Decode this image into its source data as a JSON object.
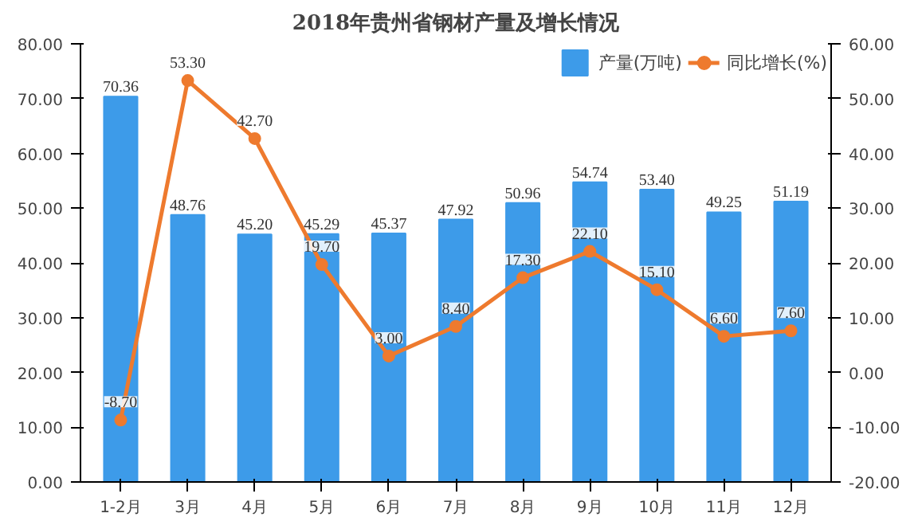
{
  "chart_data": {
    "type": "bar",
    "title": "2018年贵州省钢材产量及增长情况",
    "categories": [
      "1-2月",
      "3月",
      "4月",
      "5月",
      "6月",
      "7月",
      "8月",
      "9月",
      "10月",
      "11月",
      "12月"
    ],
    "series": [
      {
        "name": "产量(万吨)",
        "color": "#3d9be9",
        "values": [
          70.36,
          48.76,
          45.2,
          45.29,
          45.37,
          47.92,
          50.96,
          54.74,
          53.4,
          49.25,
          51.19
        ],
        "value_labels": [
          "70.36",
          "48.76",
          "45.20",
          "45.29",
          "45.37",
          "47.92",
          "50.96",
          "54.74",
          "53.40",
          "49.25",
          "51.19"
        ]
      },
      {
        "name": "同比增长(%)",
        "type": "line",
        "axis": "y2",
        "color": "#ee7a2e",
        "marker": "circle",
        "values": [
          -8.7,
          53.3,
          42.7,
          19.7,
          3.0,
          8.4,
          17.3,
          22.1,
          15.1,
          6.6,
          7.6
        ],
        "value_labels": [
          "-8.70",
          "53.30",
          "42.70",
          "19.70",
          "3.00",
          "8.40",
          "17.30",
          "22.10",
          "15.10",
          "6.60",
          "7.60"
        ]
      }
    ],
    "ylim": [
      0,
      80
    ],
    "yticks": [
      {
        "value": 0,
        "label": "0.00"
      },
      {
        "value": 10,
        "label": "10.00"
      },
      {
        "value": 20,
        "label": "20.00"
      },
      {
        "value": 30,
        "label": "30.00"
      },
      {
        "value": 40,
        "label": "40.00"
      },
      {
        "value": 50,
        "label": "50.00"
      },
      {
        "value": 60,
        "label": "60.00"
      },
      {
        "value": 70,
        "label": "70.00"
      },
      {
        "value": 80,
        "label": "80.00"
      }
    ],
    "y2lim": [
      -20,
      60
    ],
    "y2ticks": [
      {
        "value": -20,
        "label": "-20.00"
      },
      {
        "value": -10,
        "label": "-10.00"
      },
      {
        "value": 0,
        "label": "0.00"
      },
      {
        "value": 10,
        "label": "10.00"
      },
      {
        "value": 20,
        "label": "20.00"
      },
      {
        "value": 30,
        "label": "30.00"
      },
      {
        "value": 40,
        "label": "40.00"
      },
      {
        "value": 50,
        "label": "50.00"
      },
      {
        "value": 60,
        "label": "60.00"
      }
    ],
    "grid": false,
    "legend": "top"
  }
}
